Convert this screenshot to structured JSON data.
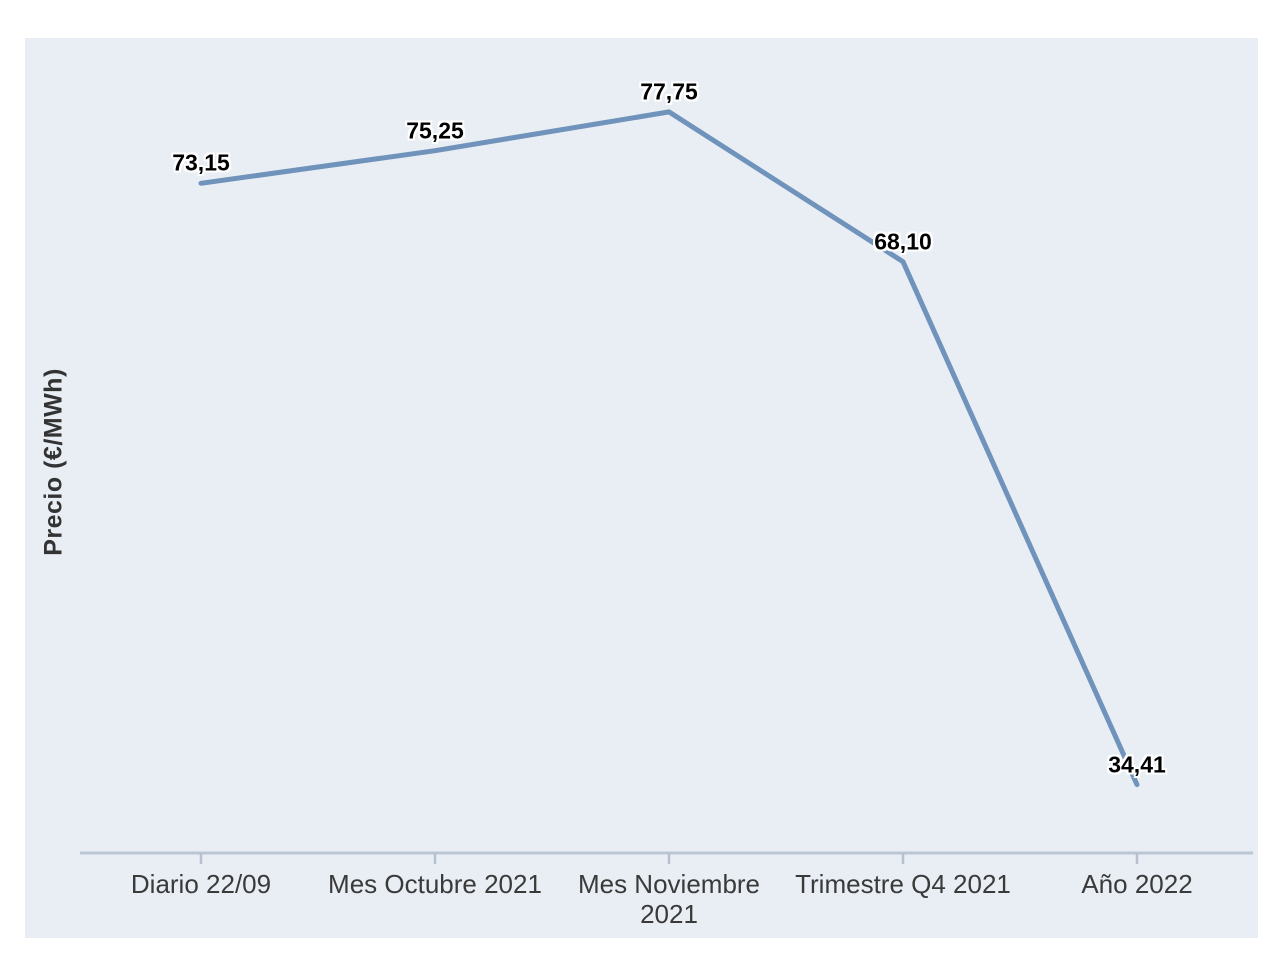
{
  "chart_data": {
    "type": "line",
    "title": "",
    "xlabel": "",
    "ylabel": "Precio (€/MWh)",
    "categories": [
      "Diario 22/09",
      "Mes Octubre 2021",
      "Mes Noviembre 2021",
      "Trimestre Q4 2021",
      "Año 2022"
    ],
    "series": [
      {
        "name": "Precio (€/MWh)",
        "values": [
          73.15,
          75.25,
          77.75,
          68.1,
          34.41
        ],
        "value_labels": [
          "73,15",
          "75,25",
          "77,75",
          "68,10",
          "34,41"
        ]
      }
    ],
    "ylim": [
      30,
      80
    ],
    "grid": false,
    "legend_position": "none",
    "colors": {
      "line": "#6f93bb",
      "plot_background": "#e8eef4",
      "axis_line": "#bcc6d2",
      "tick_mark": "#b7c1cd",
      "axis_label_text": "#3a3a3a",
      "data_label_text": "#000000",
      "data_label_halo": "#ffffff"
    }
  }
}
